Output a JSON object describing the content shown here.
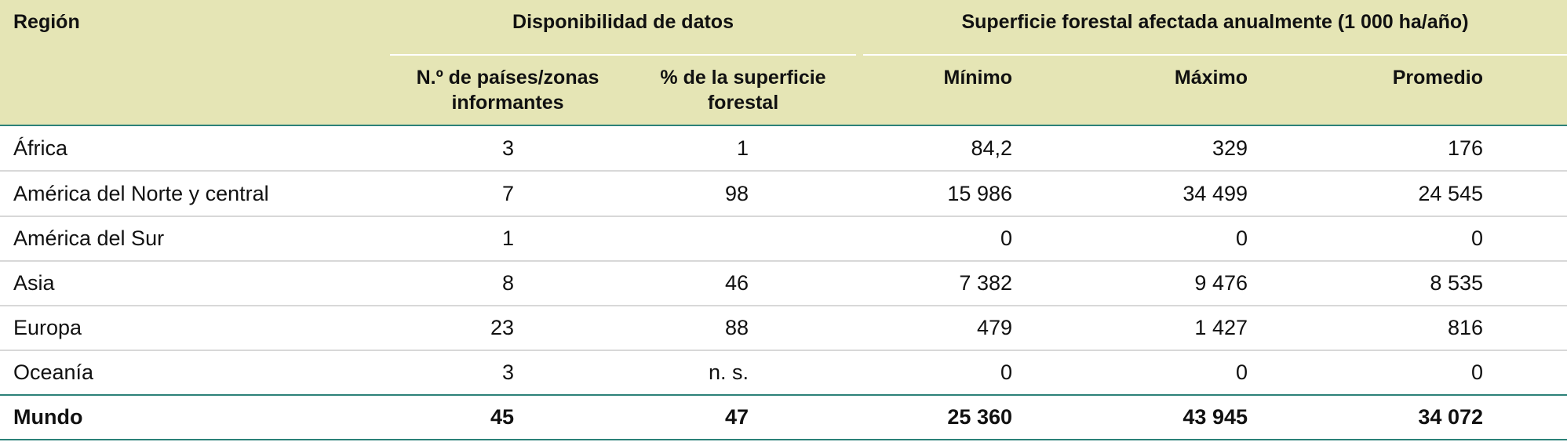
{
  "header": {
    "region": "Región",
    "group_availability": "Disponibilidad de datos",
    "group_area": "Superficie forestal afectada anualmente (1 000 ha/año)",
    "col_countries_line1": "N.º de países/zonas",
    "col_countries_line2": "informantes",
    "col_pct_line1": "% de la superficie",
    "col_pct_line2": "forestal",
    "col_min": "Mínimo",
    "col_max": "Máximo",
    "col_avg": "Promedio"
  },
  "rows": [
    {
      "region": "África",
      "n": "3",
      "pct": "1",
      "min": "84,2",
      "max": "329",
      "avg": "176"
    },
    {
      "region": "América del Norte y central",
      "n": "7",
      "pct": "98",
      "min": "15 986",
      "max": "34 499",
      "avg": "24 545"
    },
    {
      "region": "América del Sur",
      "n": "1",
      "pct": "",
      "min": "0",
      "max": "0",
      "avg": "0"
    },
    {
      "region": "Asia",
      "n": "8",
      "pct": "46",
      "min": "7 382",
      "max": "9 476",
      "avg": "8 535"
    },
    {
      "region": "Europa",
      "n": "23",
      "pct": "88",
      "min": "479",
      "max": "1 427",
      "avg": "816"
    },
    {
      "region": "Oceanía",
      "n": "3",
      "pct": "n. s.",
      "min": "0",
      "max": "0",
      "avg": "0"
    }
  ],
  "total": {
    "region": "Mundo",
    "n": "45",
    "pct": "47",
    "min": "25 360",
    "max": "43 945",
    "avg": "34 072"
  }
}
